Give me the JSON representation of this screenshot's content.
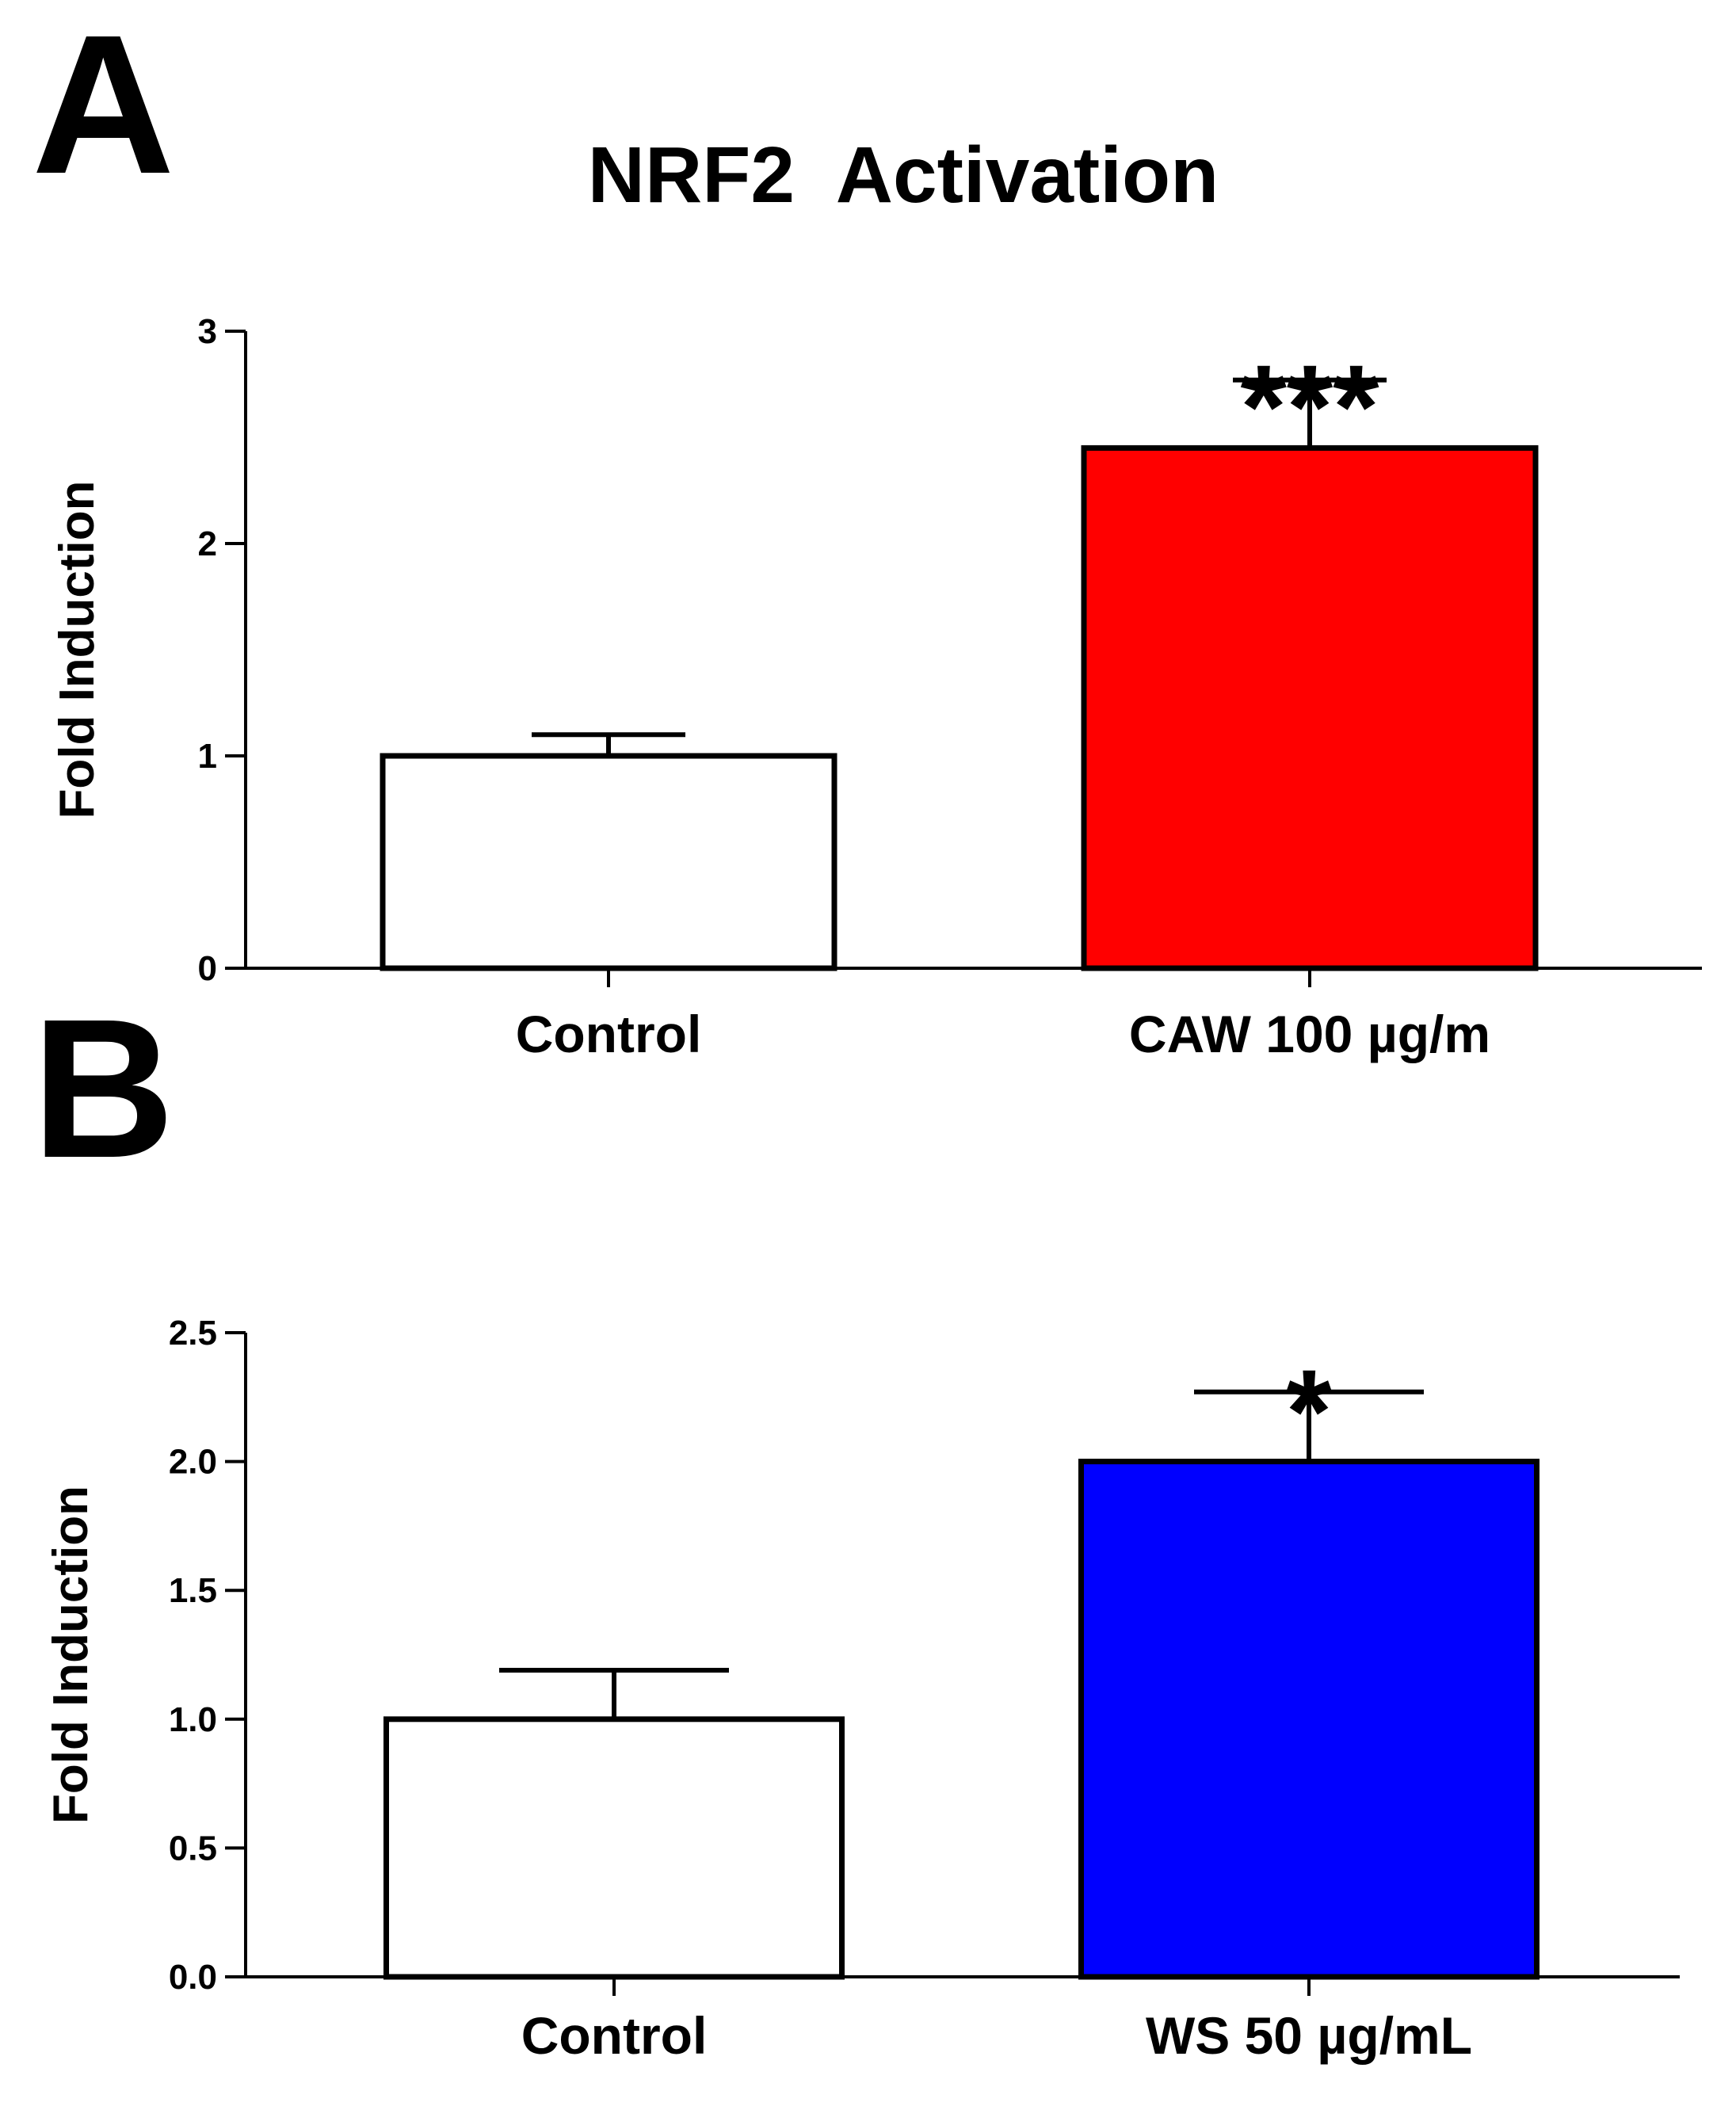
{
  "figure": {
    "title": "NRF2  Activation"
  },
  "colors": {
    "control": "#ffffff",
    "caw": "#ff0000",
    "ws": "#0000ff",
    "stroke": "#000000"
  },
  "chart_data": [
    {
      "type": "bar",
      "panel": "A",
      "title": "NRF2  Activation",
      "ylabel": "Fold Induction",
      "xlabel": "",
      "ylim": [
        0,
        3
      ],
      "yticks": [
        0,
        1,
        2,
        3
      ],
      "ytick_labels": [
        "0",
        "1",
        "2",
        "3"
      ],
      "categories": [
        "Control",
        "CAW 100 µg/m"
      ],
      "values": [
        1.0,
        2.45
      ],
      "errors": [
        0.1,
        0.32
      ],
      "significance": [
        "",
        "***"
      ],
      "colors": [
        "#ffffff",
        "#ff0000"
      ]
    },
    {
      "type": "bar",
      "panel": "B",
      "title": "",
      "ylabel": "Fold Induction",
      "xlabel": "",
      "ylim": [
        0,
        2.5
      ],
      "yticks": [
        0,
        0.5,
        1,
        1.5,
        2,
        2.5
      ],
      "ytick_labels": [
        "0.0",
        "0.5",
        "1.0",
        "1.5",
        "2.0",
        "2.5"
      ],
      "categories": [
        "Control",
        "WS 50 µg/mL"
      ],
      "values": [
        1.0,
        2.0
      ],
      "errors": [
        0.19,
        0.27
      ],
      "significance": [
        "",
        "*"
      ],
      "colors": [
        "#ffffff",
        "#0000ff"
      ]
    }
  ]
}
